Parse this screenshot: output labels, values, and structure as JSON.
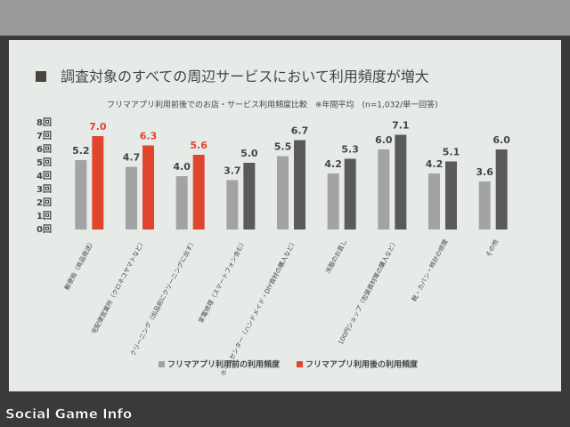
{
  "chart_data": {
    "type": "bar",
    "title": "調査対象のすべての周辺サービスにおいて利用頻度が増大",
    "subtitle": "フリマアプリ利用前後でのお店・サービス利用頻度比較　※年間平均　(n=1,032/単一回答)",
    "categories": [
      "郵便局（商品発送）",
      "宅配便営業所（クロネコヤマトなど）",
      "クリーニング（出品前にクリーニングに出す）",
      "家電修理（スマートフォン含む）",
      "ホームセンター（ハンドメイド・DIY資材の購入など）",
      "洋服のお直し",
      "100円ショップ（包装資材等の購入など）",
      "靴・カバン・時計の修理",
      "その他"
    ],
    "series": [
      {
        "name": "フリマアプリ利用前の利用頻度",
        "color": "#a3a3a3",
        "values": [
          5.2,
          4.7,
          4.0,
          3.7,
          5.5,
          4.2,
          6.0,
          4.2,
          3.6
        ],
        "value_labels": [
          "5.2",
          "4.7",
          "4.0",
          "3.7",
          "5.5",
          "4.2",
          "6.0",
          "4.2",
          "3.6"
        ]
      },
      {
        "name": "フリマアプリ利用後の利用頻度",
        "color": "#e0462e",
        "colors": [
          "#e0462e",
          "#e0462e",
          "#e0462e",
          "#5a5a5a",
          "#5a5a5a",
          "#5a5a5a",
          "#5a5a5a",
          "#5a5a5a",
          "#5a5a5a"
        ],
        "values": [
          7.0,
          6.3,
          5.6,
          5.0,
          6.7,
          5.3,
          7.1,
          5.1,
          6.0
        ],
        "value_labels": [
          "7.0",
          "6.3",
          "5.6",
          "5.0",
          "6.7",
          "5.3",
          "7.1",
          "5.1",
          "6.0"
        ]
      }
    ],
    "ylim": [
      0,
      8
    ],
    "yticks": [
      {
        "value": 0,
        "label": "0回"
      },
      {
        "value": 1,
        "label": "1回"
      },
      {
        "value": 2,
        "label": "2回"
      },
      {
        "value": 3,
        "label": "3回"
      },
      {
        "value": 4,
        "label": "4回"
      },
      {
        "value": 5,
        "label": "5回"
      },
      {
        "value": 6,
        "label": "6回"
      },
      {
        "value": 7,
        "label": "7回"
      },
      {
        "value": 8,
        "label": "8回"
      }
    ],
    "grid": false,
    "watermark": "Social Game Info"
  }
}
